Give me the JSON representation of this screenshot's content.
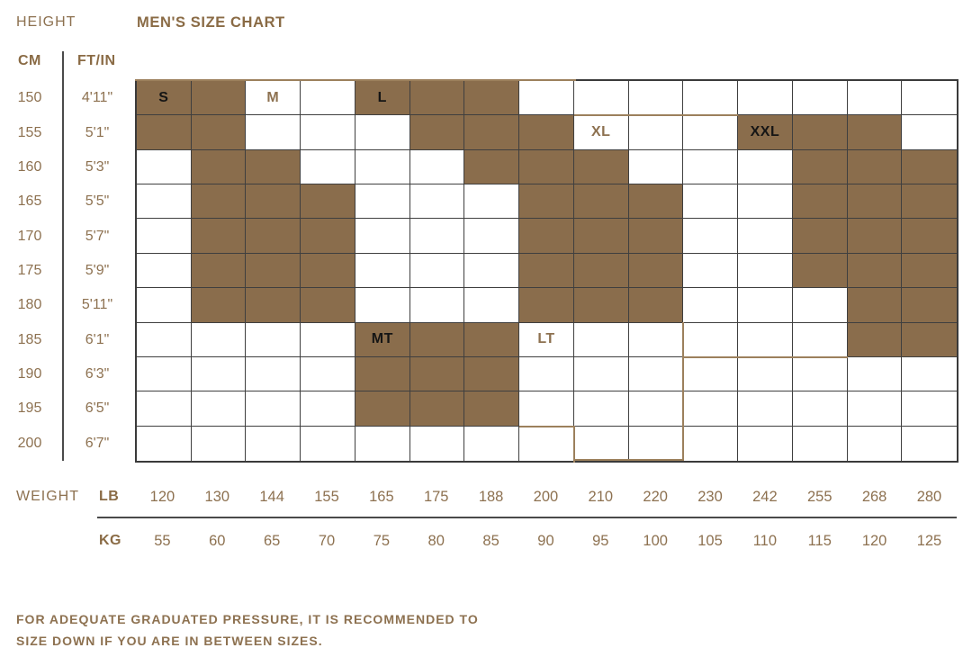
{
  "header": {
    "height_label": "HEIGHT",
    "title": "MEN'S SIZE CHART",
    "cm_label": "CM",
    "ftin_label": "FT/IN"
  },
  "weight": {
    "weight_label": "WEIGHT",
    "lb_label": "LB",
    "kg_label": "KG"
  },
  "footer": {
    "line1": "FOR ADEQUATE GRADUATED PRESSURE, IT IS RECOMMENDED TO",
    "line2": "SIZE DOWN IF YOU ARE IN BETWEEN SIZES."
  },
  "colors": {
    "fill_brown": "#8a6d4c",
    "text_brown": "#8d7150",
    "grid_line": "#3f3f3f",
    "zone_outline_tan": "#9c805c",
    "label_on_fill": "#151515"
  },
  "chart_data": {
    "type": "heatmap",
    "title": "MEN'S SIZE CHART",
    "x_axis": {
      "top_label": "WEIGHT",
      "units": [
        "LB",
        "KG"
      ]
    },
    "y_axis": {
      "units": [
        "CM",
        "FT/IN"
      ]
    },
    "rows": [
      {
        "cm": "150",
        "ftin": "4'11\""
      },
      {
        "cm": "155",
        "ftin": "5'1\""
      },
      {
        "cm": "160",
        "ftin": "5'3\""
      },
      {
        "cm": "165",
        "ftin": "5'5\""
      },
      {
        "cm": "170",
        "ftin": "5'7\""
      },
      {
        "cm": "175",
        "ftin": "5'9\""
      },
      {
        "cm": "180",
        "ftin": "5'11\""
      },
      {
        "cm": "185",
        "ftin": "6'1\""
      },
      {
        "cm": "190",
        "ftin": "6'3\""
      },
      {
        "cm": "195",
        "ftin": "6'5\""
      },
      {
        "cm": "200",
        "ftin": "6'7\""
      }
    ],
    "cols_lb": [
      "120",
      "130",
      "144",
      "155",
      "165",
      "175",
      "188",
      "200",
      "210",
      "220",
      "230",
      "242",
      "255",
      "268",
      "280"
    ],
    "cols_kg": [
      "55",
      "60",
      "65",
      "70",
      "75",
      "80",
      "85",
      "90",
      "95",
      "100",
      "105",
      "110",
      "115",
      "120",
      "125"
    ],
    "filled": [
      [
        1,
        1,
        0,
        0,
        1,
        1,
        1,
        0,
        0,
        0,
        0,
        0,
        0,
        0,
        0
      ],
      [
        1,
        1,
        0,
        0,
        0,
        1,
        1,
        1,
        0,
        0,
        0,
        1,
        1,
        1,
        0
      ],
      [
        0,
        1,
        1,
        0,
        0,
        0,
        1,
        1,
        1,
        0,
        0,
        0,
        1,
        1,
        1
      ],
      [
        0,
        1,
        1,
        1,
        0,
        0,
        0,
        1,
        1,
        1,
        0,
        0,
        1,
        1,
        1
      ],
      [
        0,
        1,
        1,
        1,
        0,
        0,
        0,
        1,
        1,
        1,
        0,
        0,
        1,
        1,
        1
      ],
      [
        0,
        1,
        1,
        1,
        0,
        0,
        0,
        1,
        1,
        1,
        0,
        0,
        1,
        1,
        1
      ],
      [
        0,
        1,
        1,
        1,
        0,
        0,
        0,
        1,
        1,
        1,
        0,
        0,
        0,
        1,
        1
      ],
      [
        0,
        0,
        0,
        0,
        1,
        1,
        1,
        0,
        0,
        0,
        0,
        0,
        0,
        1,
        1
      ],
      [
        0,
        0,
        0,
        0,
        1,
        1,
        1,
        0,
        0,
        0,
        0,
        0,
        0,
        0,
        0
      ],
      [
        0,
        0,
        0,
        0,
        1,
        1,
        1,
        0,
        0,
        0,
        0,
        0,
        0,
        0,
        0
      ],
      [
        0,
        0,
        0,
        0,
        0,
        0,
        0,
        0,
        0,
        0,
        0,
        0,
        0,
        0,
        0
      ]
    ],
    "size_labels": [
      {
        "text": "S",
        "row": 0,
        "col": 0,
        "on": "fill"
      },
      {
        "text": "M",
        "row": 0,
        "col": 2,
        "on": "empty"
      },
      {
        "text": "L",
        "row": 0,
        "col": 4,
        "on": "fill"
      },
      {
        "text": "XL",
        "row": 1,
        "col": 8,
        "on": "empty"
      },
      {
        "text": "XXL",
        "row": 1,
        "col": 11,
        "on": "fill"
      },
      {
        "text": "MT",
        "row": 7,
        "col": 4,
        "on": "fill"
      },
      {
        "text": "LT",
        "row": 7,
        "col": 7,
        "on": "empty"
      }
    ]
  }
}
